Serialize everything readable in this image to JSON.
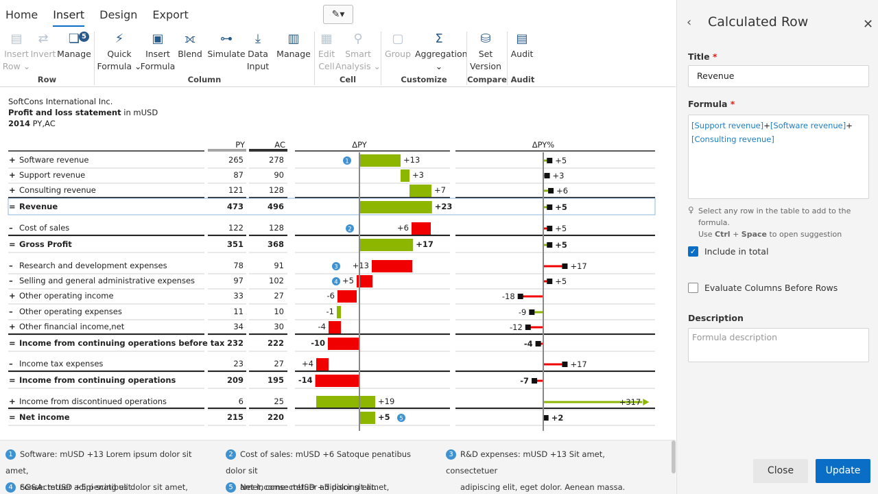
{
  "menu": {
    "items": [
      "Home",
      "Insert",
      "Design",
      "Export"
    ],
    "active": "Insert"
  },
  "ribbon": {
    "buttons": [
      {
        "l1": "Insert",
        "l2": "Row",
        "caret": true,
        "disabled": true,
        "icon": "insert-row-icon"
      },
      {
        "l1": "Invert",
        "l2": "",
        "disabled": true,
        "icon": "invert-icon"
      },
      {
        "l1": "Manage",
        "l2": "",
        "disabled": false,
        "icon": "manage-layers-icon",
        "badge": "5"
      },
      {
        "l1": "Quick",
        "l2": "Formula",
        "caret": true,
        "disabled": false,
        "icon": "quick-formula-icon"
      },
      {
        "l1": "Insert",
        "l2": "Formula",
        "disabled": false,
        "icon": "insert-formula-icon"
      },
      {
        "l1": "Blend",
        "l2": "",
        "disabled": false,
        "icon": "blend-icon"
      },
      {
        "l1": "Simulate",
        "l2": "",
        "disabled": false,
        "icon": "simulate-icon"
      },
      {
        "l1": "Data",
        "l2": "Input",
        "disabled": false,
        "icon": "data-input-icon"
      },
      {
        "l1": "Manage",
        "l2": "",
        "disabled": false,
        "icon": "manage-icon"
      },
      {
        "l1": "Edit",
        "l2": "Cell",
        "disabled": true,
        "icon": "edit-cell-icon"
      },
      {
        "l1": "Smart",
        "l2": "Analysis",
        "caret": true,
        "disabled": true,
        "icon": "smart-analysis-icon"
      },
      {
        "l1": "Group",
        "l2": "",
        "disabled": true,
        "icon": "group-icon"
      },
      {
        "l1": "Aggregation",
        "l2": "",
        "caret": true,
        "disabled": false,
        "icon": "aggregation-icon"
      },
      {
        "l1": "Set",
        "l2": "Version",
        "disabled": false,
        "icon": "set-version-icon"
      },
      {
        "l1": "Audit",
        "l2": "",
        "disabled": false,
        "icon": "audit-icon"
      }
    ],
    "groups": [
      "Row",
      "Column",
      "Cell",
      "Customize",
      "Compare",
      "Audit"
    ]
  },
  "report": {
    "company": "SoftCons International Inc.",
    "title": "Profit and loss statement",
    "unit": " in mUSD",
    "year": "2014",
    "period": " PY,AC"
  },
  "table": {
    "col_py": "PY",
    "col_ac": "AC",
    "col_dpy": "ΔPY",
    "col_dpyp": "ΔPY%",
    "rows": [
      {
        "label": "Software revenue",
        "sign": "+",
        "bold": false,
        "py": "265",
        "ac": "278",
        "d": 13,
        "dlabel": "+13",
        "p": 5,
        "plabel": "+5",
        "note": "1"
      },
      {
        "label": "Support revenue",
        "sign": "+",
        "bold": false,
        "py": "87",
        "ac": "90",
        "d": 3,
        "dlabel": "+3",
        "p": 3,
        "plabel": "+3"
      },
      {
        "label": "Consulting revenue",
        "sign": "+",
        "bold": false,
        "py": "121",
        "ac": "128",
        "d": 7,
        "dlabel": "+7",
        "p": 6,
        "plabel": "+6"
      },
      {
        "label": "Revenue",
        "sign": "=",
        "bold": true,
        "py": "473",
        "ac": "496",
        "d": 23,
        "dlabel": "+23",
        "p": 5,
        "plabel": "+5",
        "selected": true
      },
      {
        "label": "Cost of sales",
        "sign": "–",
        "bold": false,
        "py": "122",
        "ac": "128",
        "d": 6,
        "dlabel": "+6",
        "p": 5,
        "plabel": "+5",
        "neg": true,
        "note": "2"
      },
      {
        "label": "Gross Profit",
        "sign": "=",
        "bold": true,
        "py": "351",
        "ac": "368",
        "d": 17,
        "dlabel": "+17",
        "p": 5,
        "plabel": "+5"
      },
      {
        "label": "Research and development expenses",
        "sign": "–",
        "bold": false,
        "py": "78",
        "ac": "91",
        "d": 13,
        "dlabel": "+13",
        "p": 17,
        "plabel": "+17",
        "neg": true,
        "note": "3"
      },
      {
        "label": "Selling and general administrative expenses",
        "sign": "–",
        "bold": false,
        "py": "97",
        "ac": "102",
        "d": 5,
        "dlabel": "+5",
        "p": 5,
        "plabel": "+5",
        "neg": true,
        "note": "4"
      },
      {
        "label": "Other operating income",
        "sign": "+",
        "bold": false,
        "py": "33",
        "ac": "27",
        "d": -6,
        "dlabel": "-6",
        "p": -18,
        "plabel": "-18"
      },
      {
        "label": "Other operating expenses",
        "sign": "–",
        "bold": false,
        "py": "11",
        "ac": "10",
        "d": -1,
        "dlabel": "-1",
        "p": -9,
        "plabel": "-9",
        "neg": true
      },
      {
        "label": "Other financial income,net",
        "sign": "+",
        "bold": false,
        "py": "34",
        "ac": "30",
        "d": -4,
        "dlabel": "-4",
        "p": -12,
        "plabel": "-12"
      },
      {
        "label": "Income from continuing operations before tax",
        "sign": "=",
        "bold": true,
        "py": "232",
        "ac": "222",
        "d": -10,
        "dlabel": "-10",
        "p": -4,
        "plabel": "-4"
      },
      {
        "label": "Income tax expenses",
        "sign": "–",
        "bold": false,
        "py": "23",
        "ac": "27",
        "d": 4,
        "dlabel": "+4",
        "p": 17,
        "plabel": "+17",
        "neg": true
      },
      {
        "label": "Income from continuing operations",
        "sign": "=",
        "bold": true,
        "py": "209",
        "ac": "195",
        "d": -14,
        "dlabel": "-14",
        "p": -7,
        "plabel": "-7"
      },
      {
        "label": "Income from discontinued operations",
        "sign": "+",
        "bold": false,
        "py": "6",
        "ac": "25",
        "d": 19,
        "dlabel": "+19",
        "p": 317,
        "plabel": "+317",
        "clip": true
      },
      {
        "label": "Net income",
        "sign": "=",
        "bold": true,
        "py": "215",
        "ac": "220",
        "d": 5,
        "dlabel": "+5",
        "p": 2,
        "plabel": "+2",
        "note": "5"
      }
    ]
  },
  "notes": [
    {
      "n": "1",
      "l1": "Software: mUSD +13 Lorem ipsum dolor sit amet,",
      "l2": "consectetuer adipi scing elit."
    },
    {
      "n": "2",
      "l1": "Cost of sales: mUSD +6 Satoque penatibus dolor sit",
      "l2": "amet, consectetuer adipiscing elit."
    },
    {
      "n": "3",
      "l1": "R&D expenses: mUSD +13 Sit amet, consectetuer",
      "l2": "adipiscing elit, eget dolor. Aenean massa."
    },
    {
      "n": "4",
      "l1": "SG&A: mUSD +5 penatibus dolor sit amet, consectetuer",
      "l2": ""
    },
    {
      "n": "5",
      "l1": "Net income: mUSD +5 dolor sit amet, consectetuer",
      "l2": ""
    }
  ],
  "colors": {
    "pos": "#8db600",
    "neg": "#f00000",
    "accent": "#0b6ec6",
    "note": "#3f92d2"
  },
  "panel": {
    "title": "Calculated Row",
    "title_label": "Title",
    "title_value": "Revenue",
    "formula_label": "Formula",
    "formula_parts": [
      "[Support revenue]",
      "+",
      "[Software revenue]",
      "+",
      "[Consulting revenue]"
    ],
    "hint1": "Select any row in the table to add to the formula.",
    "hint2_a": "Use ",
    "hint2_b": "Ctrl",
    "hint2_c": " + ",
    "hint2_d": "Space",
    "hint2_e": " to open suggestion",
    "include_total": "Include in total",
    "eval_cols": "Evaluate Columns Before Rows",
    "desc_label": "Description",
    "desc_placeholder": "Formula description",
    "close": "Close",
    "update": "Update"
  }
}
